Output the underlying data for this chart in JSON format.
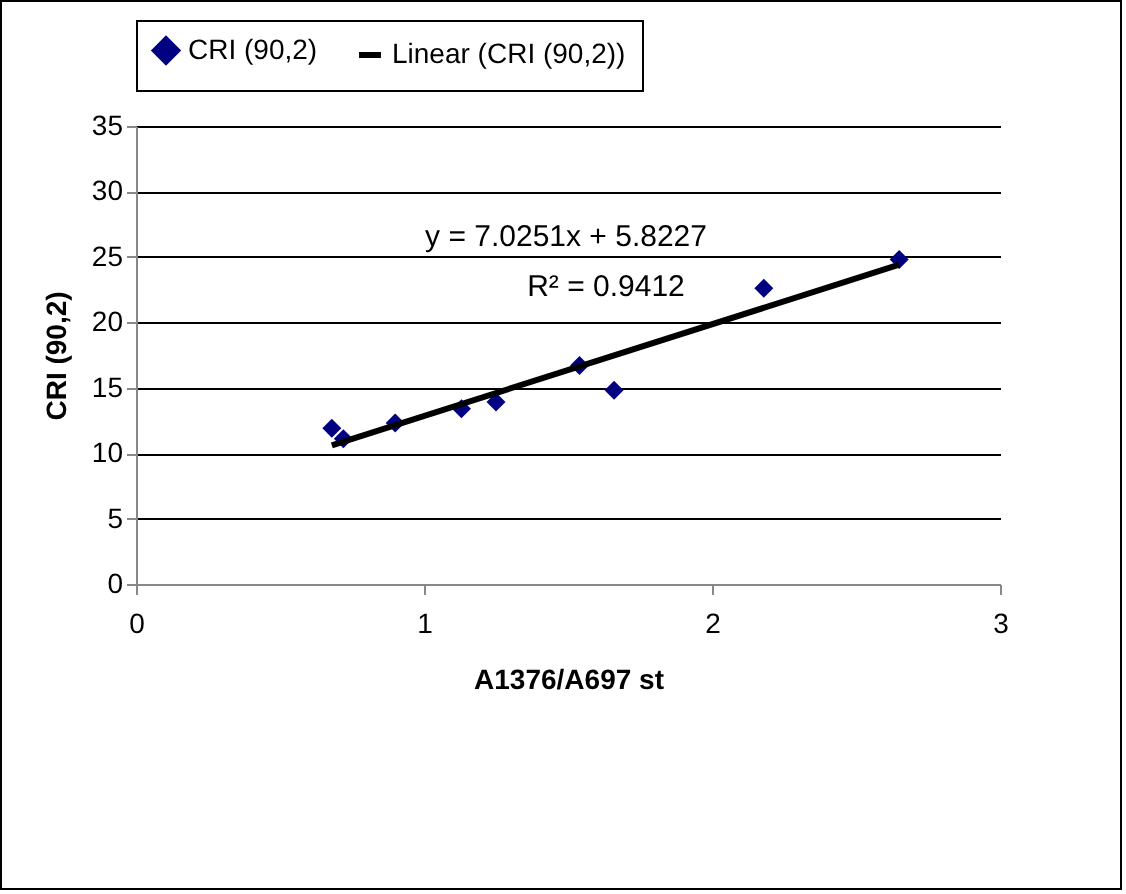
{
  "chart_data": {
    "type": "scatter",
    "xlabel": "A1376/A697 st",
    "ylabel": "CRI (90,2)",
    "series": [
      {
        "name": "CRI (90,2)",
        "type": "scatter",
        "color": "#000080",
        "marker": "diamond",
        "x": [
          0.68,
          0.72,
          0.9,
          1.13,
          1.25,
          1.54,
          1.66,
          2.18,
          2.65
        ],
        "values": [
          11.9,
          11.1,
          12.3,
          13.4,
          13.9,
          16.7,
          14.8,
          22.6,
          24.8
        ]
      },
      {
        "name": "Linear (CRI (90,2))",
        "type": "line",
        "color": "#000000",
        "line_style": "solid",
        "x": [
          0.68,
          2.65
        ],
        "values": [
          10.6,
          24.4
        ]
      }
    ],
    "xlim": [
      0,
      3
    ],
    "xticks": [
      0,
      1,
      2,
      3
    ],
    "ylim": [
      0,
      35
    ],
    "yticks": [
      0,
      5,
      10,
      15,
      20,
      25,
      30,
      35
    ],
    "grid": "y",
    "legend": "top",
    "annotations": [
      "y = 7.0251x + 5.8227",
      "R² = 0.9412"
    ]
  }
}
